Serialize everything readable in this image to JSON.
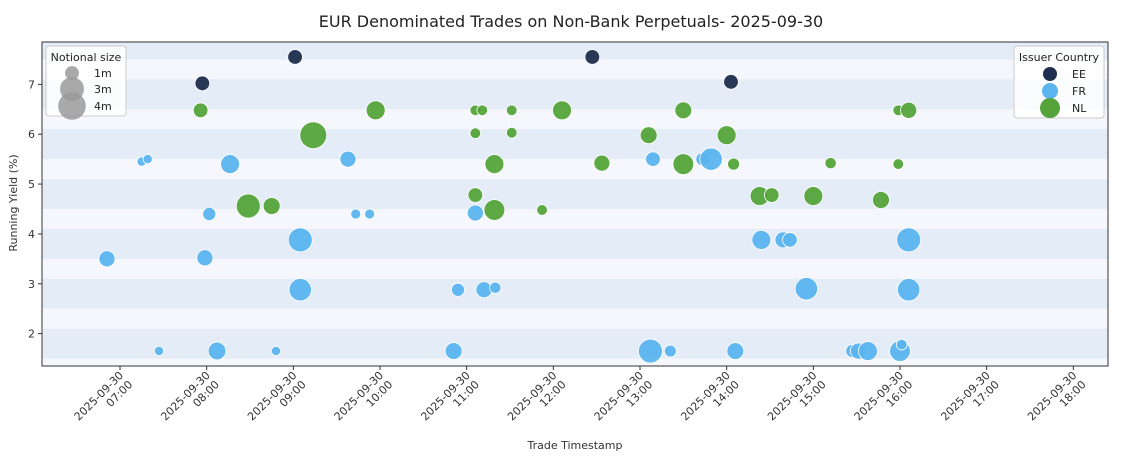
{
  "chart_data": {
    "type": "scatter",
    "title": "EUR Denominated Trades on Non-Bank Perpetuals- 2025-09-30",
    "xlabel": "Trade Timestamp",
    "ylabel": "Running Yield (%)",
    "xlim_hours": [
      6.1,
      18.4
    ],
    "ylim": [
      1.35,
      7.85
    ],
    "x_ticks": [
      {
        "h": 7,
        "line1": "2025-09-30",
        "line2": "07:00"
      },
      {
        "h": 8,
        "line1": "2025-09-30",
        "line2": "08:00"
      },
      {
        "h": 9,
        "line1": "2025-09-30",
        "line2": "09:00"
      },
      {
        "h": 10,
        "line1": "2025-09-30",
        "line2": "10:00"
      },
      {
        "h": 11,
        "line1": "2025-09-30",
        "line2": "11:00"
      },
      {
        "h": 12,
        "line1": "2025-09-30",
        "line2": "12:00"
      },
      {
        "h": 13,
        "line1": "2025-09-30",
        "line2": "13:00"
      },
      {
        "h": 14,
        "line1": "2025-09-30",
        "line2": "14:00"
      },
      {
        "h": 15,
        "line1": "2025-09-30",
        "line2": "15:00"
      },
      {
        "h": 16,
        "line1": "2025-09-30",
        "line2": "16:00"
      },
      {
        "h": 17,
        "line1": "2025-09-30",
        "line2": "17:00"
      },
      {
        "h": 18,
        "line1": "2025-09-30",
        "line2": "18:00"
      }
    ],
    "y_ticks": [
      2,
      3,
      4,
      5,
      6,
      7
    ],
    "size_legend": {
      "title": "Notional size",
      "entries": [
        {
          "label": "1m",
          "size": 1
        },
        {
          "label": "3m",
          "size": 3
        },
        {
          "label": "4m",
          "size": 4
        }
      ]
    },
    "color_legend": {
      "title": "Issuer Country",
      "entries": [
        {
          "label": "EE",
          "color": "#1f2d4e"
        },
        {
          "label": "FR",
          "color": "#5ab4ee"
        },
        {
          "label": "NL",
          "color": "#54a43a"
        }
      ]
    },
    "series": [
      {
        "name": "EE",
        "color": "#1f2d4e",
        "points": [
          {
            "h": 9.02,
            "y": 7.55,
            "size": 1.5
          },
          {
            "h": 7.95,
            "y": 7.02,
            "size": 1.5
          },
          {
            "h": 12.45,
            "y": 7.55,
            "size": 1.5
          },
          {
            "h": 14.05,
            "y": 7.05,
            "size": 1.5
          }
        ]
      },
      {
        "name": "FR",
        "color": "#5ab4ee",
        "points": [
          {
            "h": 6.85,
            "y": 3.5,
            "size": 1.8
          },
          {
            "h": 7.25,
            "y": 5.45,
            "size": 0.6
          },
          {
            "h": 7.32,
            "y": 5.5,
            "size": 0.6
          },
          {
            "h": 7.45,
            "y": 1.65,
            "size": 0.6
          },
          {
            "h": 7.98,
            "y": 3.52,
            "size": 1.8
          },
          {
            "h": 8.03,
            "y": 4.4,
            "size": 1.2
          },
          {
            "h": 8.12,
            "y": 1.65,
            "size": 2.2
          },
          {
            "h": 8.27,
            "y": 5.4,
            "size": 2.5
          },
          {
            "h": 8.8,
            "y": 1.65,
            "size": 0.6
          },
          {
            "h": 9.08,
            "y": 3.88,
            "size": 4.0
          },
          {
            "h": 9.08,
            "y": 2.88,
            "size": 3.5
          },
          {
            "h": 9.63,
            "y": 5.5,
            "size": 1.8
          },
          {
            "h": 9.72,
            "y": 4.4,
            "size": 0.7
          },
          {
            "h": 9.88,
            "y": 4.4,
            "size": 0.7
          },
          {
            "h": 10.85,
            "y": 1.65,
            "size": 2.0
          },
          {
            "h": 10.9,
            "y": 2.88,
            "size": 1.2
          },
          {
            "h": 11.1,
            "y": 4.42,
            "size": 1.8
          },
          {
            "h": 11.2,
            "y": 2.88,
            "size": 1.8
          },
          {
            "h": 11.33,
            "y": 2.92,
            "size": 0.9
          },
          {
            "h": 13.12,
            "y": 1.65,
            "size": 4.0
          },
          {
            "h": 13.15,
            "y": 5.5,
            "size": 1.5
          },
          {
            "h": 13.35,
            "y": 1.65,
            "size": 1.0
          },
          {
            "h": 13.72,
            "y": 5.5,
            "size": 1.2
          },
          {
            "h": 13.82,
            "y": 5.5,
            "size": 3.5
          },
          {
            "h": 14.1,
            "y": 1.65,
            "size": 2.0
          },
          {
            "h": 14.4,
            "y": 3.88,
            "size": 2.5
          },
          {
            "h": 14.65,
            "y": 3.88,
            "size": 1.8
          },
          {
            "h": 14.73,
            "y": 3.88,
            "size": 1.5
          },
          {
            "h": 14.92,
            "y": 2.9,
            "size": 3.5
          },
          {
            "h": 15.45,
            "y": 1.65,
            "size": 1.2
          },
          {
            "h": 15.52,
            "y": 1.65,
            "size": 1.8
          },
          {
            "h": 15.63,
            "y": 1.65,
            "size": 2.5
          },
          {
            "h": 16.0,
            "y": 1.65,
            "size": 3.0
          },
          {
            "h": 16.02,
            "y": 1.78,
            "size": 0.8
          },
          {
            "h": 16.1,
            "y": 3.88,
            "size": 4.0
          },
          {
            "h": 16.1,
            "y": 2.88,
            "size": 3.5
          }
        ]
      },
      {
        "name": "NL",
        "color": "#54a43a",
        "points": [
          {
            "h": 7.93,
            "y": 6.48,
            "size": 1.5
          },
          {
            "h": 8.48,
            "y": 4.56,
            "size": 4.0
          },
          {
            "h": 8.75,
            "y": 4.56,
            "size": 2.0
          },
          {
            "h": 9.23,
            "y": 5.98,
            "size": 5.0
          },
          {
            "h": 9.95,
            "y": 6.48,
            "size": 2.5
          },
          {
            "h": 11.1,
            "y": 6.48,
            "size": 0.8
          },
          {
            "h": 11.18,
            "y": 6.48,
            "size": 0.8
          },
          {
            "h": 11.1,
            "y": 6.02,
            "size": 0.8
          },
          {
            "h": 11.1,
            "y": 4.78,
            "size": 1.5
          },
          {
            "h": 11.32,
            "y": 5.4,
            "size": 2.5
          },
          {
            "h": 11.32,
            "y": 4.48,
            "size": 3.0
          },
          {
            "h": 11.52,
            "y": 6.48,
            "size": 0.8
          },
          {
            "h": 11.52,
            "y": 6.03,
            "size": 0.8
          },
          {
            "h": 11.87,
            "y": 4.48,
            "size": 0.8
          },
          {
            "h": 12.1,
            "y": 6.48,
            "size": 2.5
          },
          {
            "h": 12.56,
            "y": 5.42,
            "size": 1.8
          },
          {
            "h": 13.1,
            "y": 5.98,
            "size": 2.0
          },
          {
            "h": 13.5,
            "y": 6.48,
            "size": 2.0
          },
          {
            "h": 13.5,
            "y": 5.4,
            "size": 3.0
          },
          {
            "h": 14.0,
            "y": 5.98,
            "size": 2.5
          },
          {
            "h": 14.08,
            "y": 5.4,
            "size": 1.0
          },
          {
            "h": 14.38,
            "y": 4.76,
            "size": 2.5
          },
          {
            "h": 14.52,
            "y": 4.78,
            "size": 1.5
          },
          {
            "h": 15.0,
            "y": 4.76,
            "size": 2.5
          },
          {
            "h": 15.2,
            "y": 5.42,
            "size": 0.9
          },
          {
            "h": 15.78,
            "y": 4.68,
            "size": 2.0
          },
          {
            "h": 15.98,
            "y": 6.48,
            "size": 0.8
          },
          {
            "h": 15.98,
            "y": 5.4,
            "size": 0.8
          },
          {
            "h": 16.1,
            "y": 6.48,
            "size": 1.8
          }
        ]
      }
    ]
  }
}
